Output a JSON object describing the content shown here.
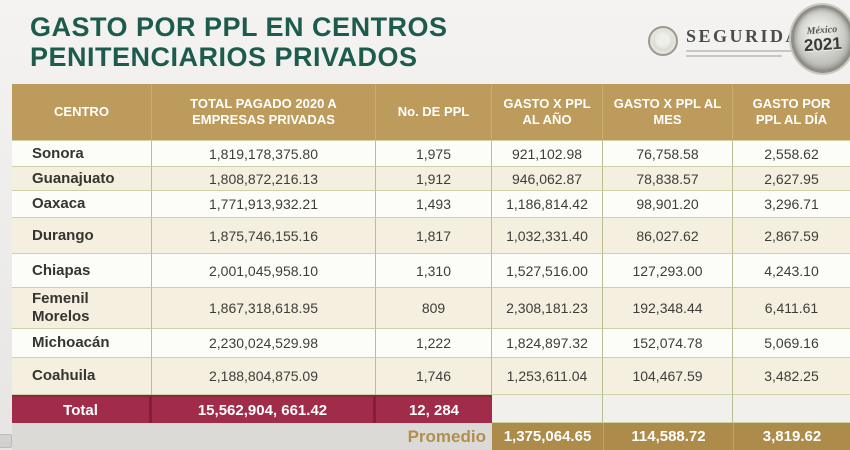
{
  "title": "GASTO POR PPL EN CENTROS PENITENCIARIOS PRIVADOS",
  "logos": {
    "seguridad_label": "SEGURIDAD",
    "badge_country": "México",
    "badge_year": "2021"
  },
  "colors": {
    "title_green": "#1d5c4d",
    "header_gold": "#bd9b5c",
    "total_maroon": "#a02c49",
    "promedio_gold": "#ad8b4a",
    "row_cream": "#f4efdf"
  },
  "table": {
    "headers": [
      "CENTRO",
      "TOTAL PAGADO 2020 A EMPRESAS PRIVADAS",
      "No. DE PPL",
      "GASTO X PPL AL AÑO",
      "GASTO X PPL AL MES",
      "GASTO POR PPL AL DÍA"
    ],
    "rows": [
      [
        "Sonora",
        "1,819,178,375.80",
        "1,975",
        "921,102.98",
        "76,758.58",
        "2,558.62"
      ],
      [
        "Guanajuato",
        "1,808,872,216.13",
        "1,912",
        "946,062.87",
        "78,838.57",
        "2,627.95"
      ],
      [
        "Oaxaca",
        "1,771,913,932.21",
        "1,493",
        "1,186,814.42",
        "98,901.20",
        "3,296.71"
      ],
      [
        "Durango",
        "1,875,746,155.16",
        "1,817",
        "1,032,331.40",
        "86,027.62",
        "2,867.59"
      ],
      [
        "Chiapas",
        "2,001,045,958.10",
        "1,310",
        "1,527,516.00",
        "127,293.00",
        "4,243.10"
      ],
      [
        "Femenil Morelos",
        "1,867,318,618.95",
        "809",
        "2,308,181.23",
        "192,348.44",
        "6,411.61"
      ],
      [
        "Michoacán",
        "2,230,024,529.98",
        "1,222",
        "1,824,897.32",
        "152,074.78",
        "5,069.16"
      ],
      [
        "Coahuila",
        "2,188,804,875.09",
        "1,746",
        "1,253,611.04",
        "104,467.59",
        "3,482.25"
      ]
    ],
    "total_row": {
      "label": "Total",
      "total_pagado": "15,562,904, 661.42",
      "ppl": "12, 284"
    },
    "promedio_row": {
      "label": "Promedio",
      "gasto_anio": "1,375,064.65",
      "gasto_mes": "114,588.72",
      "gasto_dia": "3,819.62"
    }
  }
}
